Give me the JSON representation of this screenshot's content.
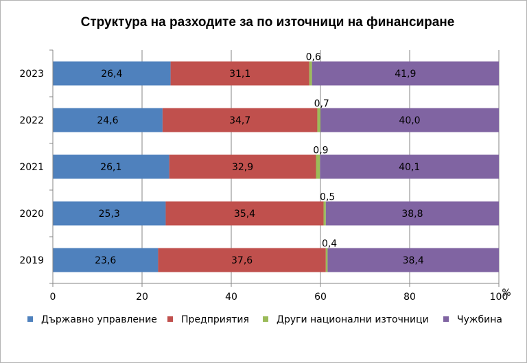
{
  "chart_data": {
    "type": "bar",
    "orientation": "horizontal",
    "stacked": true,
    "title": "Структура на разходите за по източници на финансиране",
    "categories": [
      "2023",
      "2022",
      "2021",
      "2020",
      "2019"
    ],
    "series": [
      {
        "name": "Държавно управление",
        "color": "#4f81bd",
        "values": [
          26.4,
          24.6,
          26.1,
          25.3,
          23.6
        ],
        "labels": [
          "26,4",
          "24,6",
          "26,1",
          "25,3",
          "23,6"
        ]
      },
      {
        "name": "Предприятия",
        "color": "#c0504d",
        "values": [
          31.1,
          34.7,
          32.9,
          35.4,
          37.6
        ],
        "labels": [
          "31,1",
          "34,7",
          "32,9",
          "35,4",
          "37,6"
        ]
      },
      {
        "name": "Други национални източници",
        "color": "#9bbb59",
        "values": [
          0.6,
          0.7,
          0.9,
          0.5,
          0.4
        ],
        "labels": [
          "0,6",
          "0,7",
          "0,9",
          "0,5",
          "0,4"
        ]
      },
      {
        "name": "Чужбина",
        "color": "#8064a2",
        "values": [
          41.9,
          40.0,
          40.1,
          38.8,
          38.4
        ],
        "labels": [
          "41,9",
          "40,0",
          "40,1",
          "38,8",
          "38,4"
        ]
      }
    ],
    "xlim": [
      0,
      100
    ],
    "xticks": [
      0,
      20,
      40,
      60,
      80,
      100
    ],
    "xticklabels": [
      "0",
      "20",
      "40",
      "60",
      "80",
      "100"
    ],
    "xlabel": "%",
    "grid": "vertical",
    "legend_position": "bottom"
  }
}
